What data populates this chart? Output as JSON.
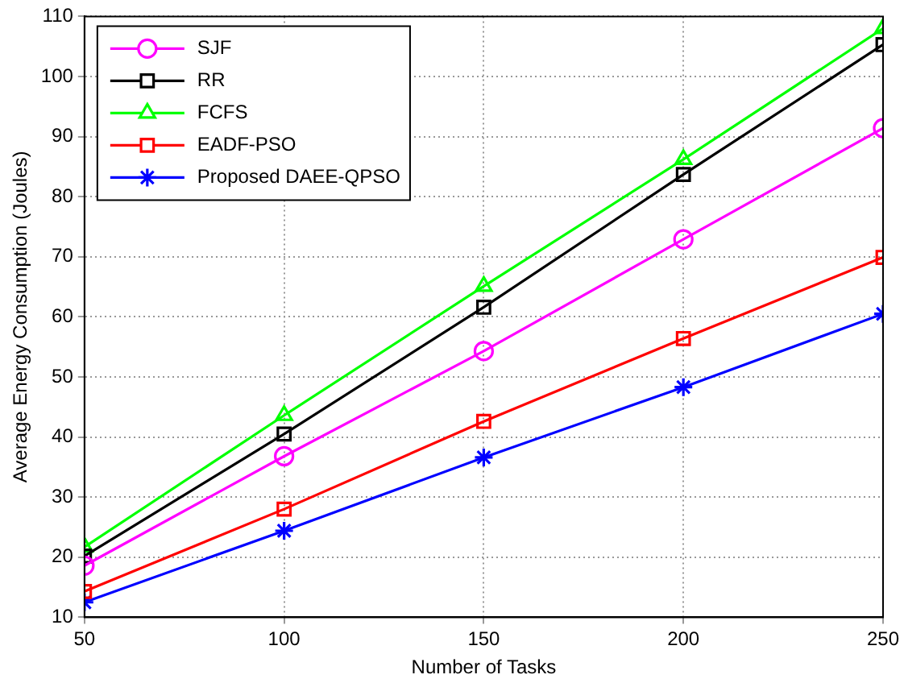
{
  "chart_data": {
    "type": "line",
    "xlabel": "Number of Tasks",
    "ylabel": "Average Energy Consumption (Joules)",
    "x": [
      50,
      100,
      150,
      200,
      250
    ],
    "xlim": [
      50,
      250
    ],
    "xticks": [
      50,
      100,
      150,
      200,
      250
    ],
    "ylim": [
      10,
      110
    ],
    "yticks": [
      10,
      20,
      30,
      40,
      50,
      60,
      70,
      80,
      90,
      100,
      110
    ],
    "grid": true,
    "legend": "top left",
    "line_style": "solid",
    "series": [
      {
        "name": "SJF",
        "color": "#ff00ff",
        "marker": "circle",
        "values": [
          18.6,
          36.8,
          54.3,
          72.9,
          91.4
        ]
      },
      {
        "name": "RR",
        "color": "#000000",
        "marker": "square",
        "values": [
          20.2,
          40.5,
          61.6,
          83.7,
          105.3
        ]
      },
      {
        "name": "FCFS",
        "color": "#00ff00",
        "marker": "triangle",
        "values": [
          21.7,
          43.6,
          65.1,
          86.2,
          108
        ]
      },
      {
        "name": "EADF-PSO",
        "color": "#ff0000",
        "marker": "square",
        "values": [
          14.3,
          28,
          42.6,
          56.4,
          69.9
        ]
      },
      {
        "name": "Proposed DAEE-QPSO",
        "color": "#0000ff",
        "marker": "cross",
        "values": [
          12.5,
          24.4,
          36.6,
          48.3,
          60.5
        ]
      }
    ]
  }
}
